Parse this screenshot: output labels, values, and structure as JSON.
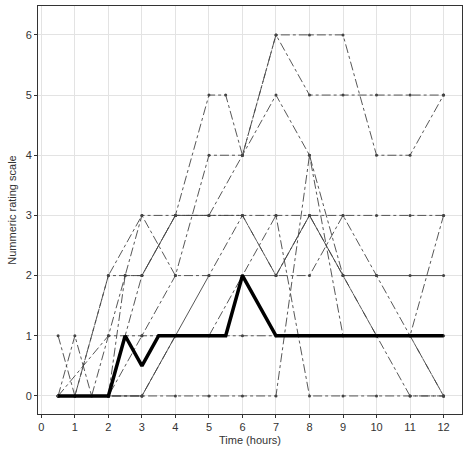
{
  "chart_data": {
    "type": "line",
    "x_label": "Time (hours)",
    "y_label": "Nummeric rating scale",
    "xlim": [
      -0.1,
      12.55
    ],
    "xticks": [
      0,
      1,
      2,
      3,
      4,
      5,
      6,
      7,
      8,
      9,
      10,
      11,
      12
    ],
    "ylim": [
      -0.3,
      6.48
    ],
    "yticks": [
      0,
      1,
      2,
      3,
      4,
      5,
      6
    ],
    "grid": true,
    "marker": "circle",
    "color": "#444444",
    "series": [
      {
        "line_style": "dashdot",
        "x": [
          0.5,
          1,
          1.5,
          2,
          3,
          4,
          5,
          5.5,
          6,
          7,
          8,
          9,
          10,
          11,
          12
        ],
        "values": [
          0,
          1,
          0,
          1,
          3,
          3,
          5,
          5,
          4,
          6,
          5,
          5,
          5,
          5,
          5
        ]
      },
      {
        "line_style": "dashdot",
        "x": [
          0.5,
          1,
          2,
          2.5,
          3,
          4,
          5,
          6,
          7,
          8,
          9,
          10,
          11,
          12
        ],
        "values": [
          1,
          0,
          2,
          2,
          2,
          3,
          3,
          4,
          6,
          6,
          6,
          4,
          4,
          5
        ]
      },
      {
        "line_style": "dashdot",
        "x": [
          0.5,
          1,
          2,
          3,
          4,
          5,
          6,
          7,
          8,
          9,
          10,
          11,
          12
        ],
        "values": [
          0,
          0,
          2,
          3,
          2,
          2,
          3,
          2,
          3,
          2,
          1,
          1,
          0
        ]
      },
      {
        "line_style": "dashdot",
        "x": [
          0.5,
          1,
          2,
          3,
          4,
          5,
          6,
          7,
          8,
          9,
          10,
          11,
          12
        ],
        "values": [
          0,
          0,
          0,
          1,
          2,
          4,
          4,
          5,
          4,
          2,
          1,
          0,
          0
        ]
      },
      {
        "line_style": "solid",
        "x": [
          0.5,
          2,
          3,
          4,
          5,
          6,
          7,
          8,
          9,
          10,
          11,
          12
        ],
        "values": [
          0,
          0,
          0,
          1,
          2,
          2,
          2,
          3,
          2,
          2,
          2,
          2
        ]
      },
      {
        "line_style": "dashdot",
        "x": [
          0.5,
          2,
          3,
          4,
          5,
          6,
          7,
          8,
          9,
          10,
          11,
          12
        ],
        "values": [
          0,
          0,
          2,
          3,
          3,
          3,
          3,
          3,
          3,
          3,
          3,
          3
        ]
      },
      {
        "line_style": "dashdot",
        "x": [
          0.5,
          2,
          3,
          4,
          5,
          6,
          7,
          8,
          9,
          10,
          11,
          12
        ],
        "values": [
          0,
          0,
          0,
          0,
          0,
          0,
          0,
          4,
          1,
          1,
          1,
          1
        ]
      },
      {
        "line_style": "dashdot",
        "x": [
          0.5,
          2,
          3,
          4,
          5,
          6,
          7,
          8,
          9,
          10,
          11,
          12
        ],
        "values": [
          0,
          1,
          1,
          1,
          1,
          2,
          3,
          0,
          0,
          0,
          0,
          0
        ]
      },
      {
        "line_style": "dashdot",
        "x": [
          0.5,
          2,
          2.5,
          3,
          4,
          5,
          6,
          7,
          8,
          9,
          10,
          11,
          12
        ],
        "values": [
          0,
          0,
          2,
          2,
          3,
          3,
          3,
          2,
          2,
          3,
          2,
          1,
          0
        ]
      },
      {
        "line_style": "dashdot",
        "x": [
          0.5,
          1,
          2,
          3,
          4,
          5,
          6,
          7,
          8,
          9,
          10,
          11,
          12
        ],
        "values": [
          0,
          0,
          0,
          0,
          1,
          1,
          1,
          1,
          1,
          1,
          1,
          1,
          3
        ]
      },
      {
        "line_style": "bold",
        "color": "#000000",
        "x": [
          0.5,
          1,
          1.5,
          2,
          2.5,
          3,
          3.5,
          4,
          4.5,
          5,
          5.5,
          6,
          7,
          8,
          9,
          10,
          11,
          12
        ],
        "values": [
          0,
          0,
          0,
          0,
          1,
          0.5,
          1,
          1,
          1,
          1,
          1,
          2,
          1,
          1,
          1,
          1,
          1,
          1
        ]
      }
    ]
  }
}
